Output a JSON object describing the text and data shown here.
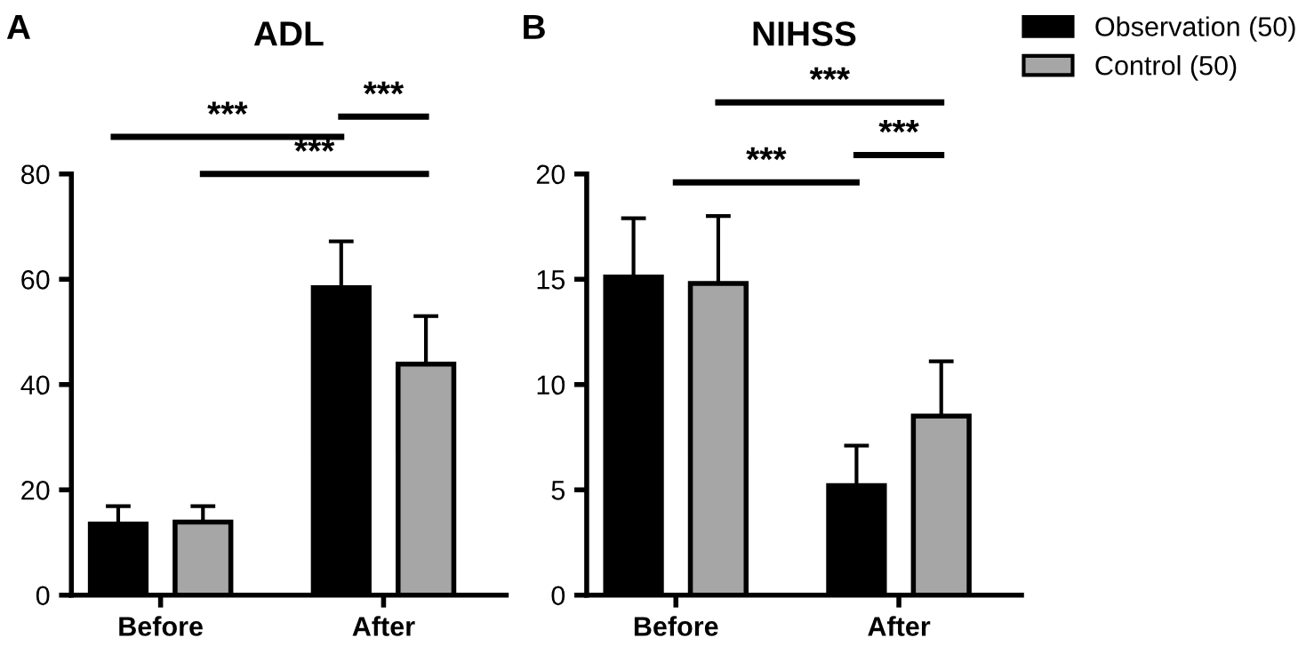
{
  "chart_data": [
    {
      "type": "bar",
      "title": "ADL",
      "categories": [
        "Before",
        "After"
      ],
      "series": [
        {
          "color": "#000000",
          "values": [
            13.5,
            58.4
          ],
          "errors": [
            [
              13.5,
              16.9
            ],
            [
              58.4,
              67.2
            ]
          ]
        },
        {
          "color": "#a6a6a6",
          "values": [
            13.9,
            43.9
          ],
          "errors": [
            [
              13.9,
              16.9
            ],
            [
              43.9,
              53.0
            ]
          ]
        }
      ],
      "ylim": [
        0,
        80
      ],
      "yticks": [
        0,
        20,
        40,
        60,
        80
      ],
      "grid": false,
      "annotations": [
        "A",
        "***",
        "***",
        "***"
      ]
    },
    {
      "type": "bar",
      "title": "NIHSS",
      "categories": [
        "Before",
        "After"
      ],
      "series": [
        {
          "name": "Observation (50)",
          "color": "#000000",
          "values": [
            15.1,
            5.2
          ],
          "errors": [
            [
              15.1,
              17.9
            ],
            [
              5.2,
              7.1
            ]
          ]
        },
        {
          "name": "Control (50)",
          "color": "#a6a6a6",
          "values": [
            14.8,
            8.5
          ],
          "errors": [
            [
              14.8,
              18.0
            ],
            [
              8.5,
              11.1
            ]
          ]
        }
      ],
      "ylim": [
        0,
        20
      ],
      "yticks": [
        0,
        5,
        10,
        15,
        20
      ],
      "grid": false,
      "legend": "top right",
      "annotations": [
        "B",
        "***",
        "***",
        "***"
      ]
    }
  ]
}
